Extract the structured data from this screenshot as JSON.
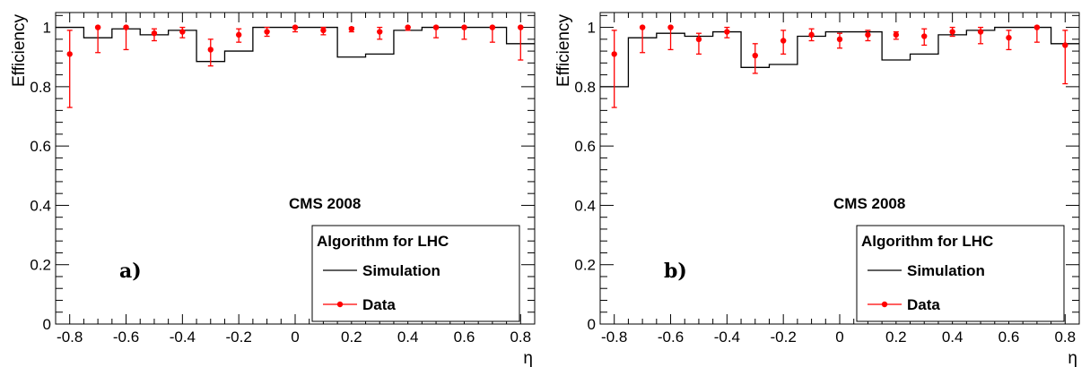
{
  "chart_data": [
    {
      "type": "line",
      "panel_label": "a)",
      "experiment_label": "CMS 2008",
      "xlabel": "η",
      "ylabel": "Efficiency",
      "xlim": [
        -0.85,
        0.85
      ],
      "ylim": [
        0,
        1.05
      ],
      "x_ticks": [
        -0.8,
        -0.6,
        -0.4,
        -0.2,
        0,
        0.2,
        0.4,
        0.6,
        0.8
      ],
      "x_tick_labels": [
        "-0.8",
        "-0.6",
        "-0.4",
        "-0.2",
        "0",
        "0.2",
        "0.4",
        "0.6",
        "0.8"
      ],
      "y_ticks": [
        0,
        0.2,
        0.4,
        0.6,
        0.8,
        1
      ],
      "y_tick_labels": [
        "0",
        "0.2",
        "0.4",
        "0.6",
        "0.8",
        "1"
      ],
      "legend": {
        "title": "Algorithm for LHC",
        "placement": "bottom-right",
        "entries": [
          "Simulation",
          "Data"
        ]
      },
      "series": [
        {
          "name": "Simulation",
          "kind": "step",
          "color": "#000000",
          "bin_edges": [
            -0.85,
            -0.75,
            -0.65,
            -0.55,
            -0.45,
            -0.35,
            -0.25,
            -0.15,
            -0.05,
            0.05,
            0.15,
            0.25,
            0.35,
            0.45,
            0.55,
            0.65,
            0.75,
            0.85
          ],
          "values": [
            1.0,
            0.965,
            0.995,
            0.975,
            0.99,
            0.885,
            0.92,
            1.0,
            1.0,
            1.0,
            0.9,
            0.91,
            0.99,
            1.0,
            1.0,
            1.0,
            0.945
          ]
        },
        {
          "name": "Data",
          "kind": "points",
          "color": "#ff0000",
          "x": [
            -0.8,
            -0.7,
            -0.6,
            -0.5,
            -0.4,
            -0.3,
            -0.2,
            -0.1,
            0.0,
            0.1,
            0.2,
            0.3,
            0.4,
            0.5,
            0.6,
            0.7,
            0.8
          ],
          "y": [
            0.91,
            1.0,
            1.0,
            0.98,
            0.985,
            0.925,
            0.975,
            0.985,
            1.0,
            0.99,
            0.995,
            0.985,
            1.0,
            1.0,
            1.0,
            1.0,
            1.0
          ],
          "err_low": [
            0.18,
            0.085,
            0.075,
            0.025,
            0.02,
            0.055,
            0.025,
            0.015,
            0.015,
            0.015,
            0.01,
            0.025,
            0.01,
            0.035,
            0.04,
            0.05,
            0.11
          ],
          "err_high": [
            0.08,
            0.0,
            0.0,
            0.015,
            0.015,
            0.035,
            0.02,
            0.015,
            0.0,
            0.01,
            0.005,
            0.015,
            0.0,
            0.0,
            0.0,
            0.0,
            0.0
          ]
        }
      ]
    },
    {
      "type": "line",
      "panel_label": "b)",
      "experiment_label": "CMS 2008",
      "xlabel": "η",
      "ylabel": "Efficiency",
      "xlim": [
        -0.85,
        0.85
      ],
      "ylim": [
        0,
        1.05
      ],
      "x_ticks": [
        -0.8,
        -0.6,
        -0.4,
        -0.2,
        0,
        0.2,
        0.4,
        0.6,
        0.8
      ],
      "x_tick_labels": [
        "-0.8",
        "-0.6",
        "-0.4",
        "-0.2",
        "0",
        "0.2",
        "0.4",
        "0.6",
        "0.8"
      ],
      "y_ticks": [
        0,
        0.2,
        0.4,
        0.6,
        0.8,
        1
      ],
      "y_tick_labels": [
        "0",
        "0.2",
        "0.4",
        "0.6",
        "0.8",
        "1"
      ],
      "legend": {
        "title": "Algorithm for LHC",
        "placement": "bottom-right",
        "entries": [
          "Simulation",
          "Data"
        ]
      },
      "series": [
        {
          "name": "Simulation",
          "kind": "step",
          "color": "#000000",
          "bin_edges": [
            -0.85,
            -0.75,
            -0.65,
            -0.55,
            -0.45,
            -0.35,
            -0.25,
            -0.15,
            -0.05,
            0.05,
            0.15,
            0.25,
            0.35,
            0.45,
            0.55,
            0.65,
            0.75,
            0.85
          ],
          "values": [
            0.8,
            0.965,
            0.98,
            0.97,
            0.985,
            0.865,
            0.875,
            0.97,
            0.985,
            0.985,
            0.89,
            0.91,
            0.975,
            0.99,
            1.0,
            1.0,
            0.945
          ]
        },
        {
          "name": "Data",
          "kind": "points",
          "color": "#ff0000",
          "x": [
            -0.8,
            -0.7,
            -0.6,
            -0.5,
            -0.4,
            -0.3,
            -0.2,
            -0.1,
            0.0,
            0.1,
            0.2,
            0.3,
            0.4,
            0.5,
            0.6,
            0.7,
            0.8
          ],
          "y": [
            0.91,
            1.0,
            1.0,
            0.96,
            0.985,
            0.905,
            0.955,
            0.975,
            0.96,
            0.975,
            0.975,
            0.97,
            0.985,
            0.985,
            0.965,
            1.0,
            0.94
          ],
          "err_low": [
            0.18,
            0.085,
            0.075,
            0.05,
            0.02,
            0.06,
            0.045,
            0.02,
            0.03,
            0.02,
            0.015,
            0.03,
            0.015,
            0.04,
            0.04,
            0.05,
            0.13
          ],
          "err_high": [
            0.08,
            0.0,
            0.0,
            0.02,
            0.015,
            0.04,
            0.035,
            0.02,
            0.02,
            0.015,
            0.01,
            0.025,
            0.015,
            0.015,
            0.025,
            0.0,
            0.05
          ]
        }
      ]
    }
  ]
}
